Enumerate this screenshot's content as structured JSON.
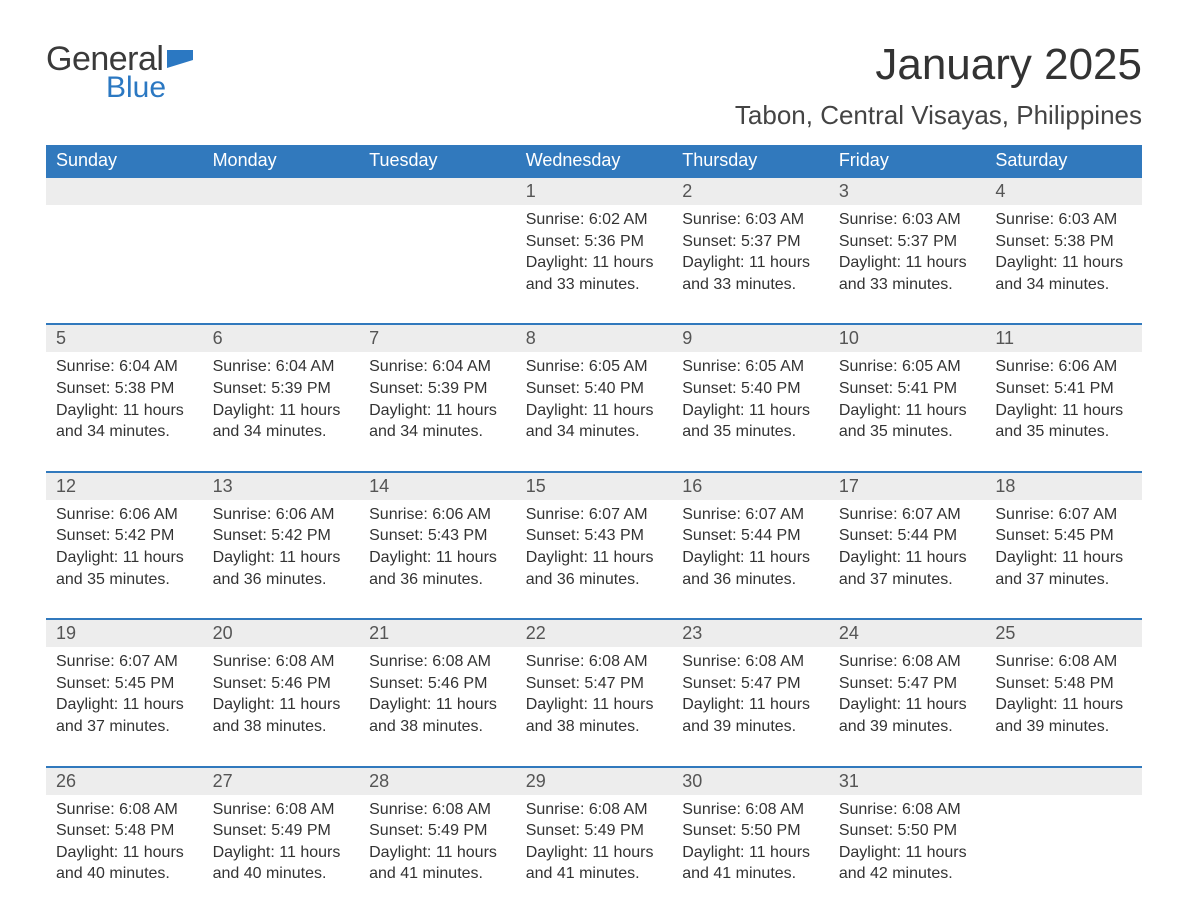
{
  "brand": {
    "general": "General",
    "blue": "Blue"
  },
  "title": "January 2025",
  "location": "Tabon, Central Visayas, Philippines",
  "colors": {
    "header_bg": "#3179bd",
    "daynum_bg": "#ededed",
    "text": "#333333",
    "brand_blue": "#2b78c2"
  },
  "day_headers": [
    "Sunday",
    "Monday",
    "Tuesday",
    "Wednesday",
    "Thursday",
    "Friday",
    "Saturday"
  ],
  "weeks": [
    [
      null,
      null,
      null,
      {
        "num": "1",
        "sunrise": "Sunrise: 6:02 AM",
        "sunset": "Sunset: 5:36 PM",
        "dl1": "Daylight: 11 hours",
        "dl2": "and 33 minutes."
      },
      {
        "num": "2",
        "sunrise": "Sunrise: 6:03 AM",
        "sunset": "Sunset: 5:37 PM",
        "dl1": "Daylight: 11 hours",
        "dl2": "and 33 minutes."
      },
      {
        "num": "3",
        "sunrise": "Sunrise: 6:03 AM",
        "sunset": "Sunset: 5:37 PM",
        "dl1": "Daylight: 11 hours",
        "dl2": "and 33 minutes."
      },
      {
        "num": "4",
        "sunrise": "Sunrise: 6:03 AM",
        "sunset": "Sunset: 5:38 PM",
        "dl1": "Daylight: 11 hours",
        "dl2": "and 34 minutes."
      }
    ],
    [
      {
        "num": "5",
        "sunrise": "Sunrise: 6:04 AM",
        "sunset": "Sunset: 5:38 PM",
        "dl1": "Daylight: 11 hours",
        "dl2": "and 34 minutes."
      },
      {
        "num": "6",
        "sunrise": "Sunrise: 6:04 AM",
        "sunset": "Sunset: 5:39 PM",
        "dl1": "Daylight: 11 hours",
        "dl2": "and 34 minutes."
      },
      {
        "num": "7",
        "sunrise": "Sunrise: 6:04 AM",
        "sunset": "Sunset: 5:39 PM",
        "dl1": "Daylight: 11 hours",
        "dl2": "and 34 minutes."
      },
      {
        "num": "8",
        "sunrise": "Sunrise: 6:05 AM",
        "sunset": "Sunset: 5:40 PM",
        "dl1": "Daylight: 11 hours",
        "dl2": "and 34 minutes."
      },
      {
        "num": "9",
        "sunrise": "Sunrise: 6:05 AM",
        "sunset": "Sunset: 5:40 PM",
        "dl1": "Daylight: 11 hours",
        "dl2": "and 35 minutes."
      },
      {
        "num": "10",
        "sunrise": "Sunrise: 6:05 AM",
        "sunset": "Sunset: 5:41 PM",
        "dl1": "Daylight: 11 hours",
        "dl2": "and 35 minutes."
      },
      {
        "num": "11",
        "sunrise": "Sunrise: 6:06 AM",
        "sunset": "Sunset: 5:41 PM",
        "dl1": "Daylight: 11 hours",
        "dl2": "and 35 minutes."
      }
    ],
    [
      {
        "num": "12",
        "sunrise": "Sunrise: 6:06 AM",
        "sunset": "Sunset: 5:42 PM",
        "dl1": "Daylight: 11 hours",
        "dl2": "and 35 minutes."
      },
      {
        "num": "13",
        "sunrise": "Sunrise: 6:06 AM",
        "sunset": "Sunset: 5:42 PM",
        "dl1": "Daylight: 11 hours",
        "dl2": "and 36 minutes."
      },
      {
        "num": "14",
        "sunrise": "Sunrise: 6:06 AM",
        "sunset": "Sunset: 5:43 PM",
        "dl1": "Daylight: 11 hours",
        "dl2": "and 36 minutes."
      },
      {
        "num": "15",
        "sunrise": "Sunrise: 6:07 AM",
        "sunset": "Sunset: 5:43 PM",
        "dl1": "Daylight: 11 hours",
        "dl2": "and 36 minutes."
      },
      {
        "num": "16",
        "sunrise": "Sunrise: 6:07 AM",
        "sunset": "Sunset: 5:44 PM",
        "dl1": "Daylight: 11 hours",
        "dl2": "and 36 minutes."
      },
      {
        "num": "17",
        "sunrise": "Sunrise: 6:07 AM",
        "sunset": "Sunset: 5:44 PM",
        "dl1": "Daylight: 11 hours",
        "dl2": "and 37 minutes."
      },
      {
        "num": "18",
        "sunrise": "Sunrise: 6:07 AM",
        "sunset": "Sunset: 5:45 PM",
        "dl1": "Daylight: 11 hours",
        "dl2": "and 37 minutes."
      }
    ],
    [
      {
        "num": "19",
        "sunrise": "Sunrise: 6:07 AM",
        "sunset": "Sunset: 5:45 PM",
        "dl1": "Daylight: 11 hours",
        "dl2": "and 37 minutes."
      },
      {
        "num": "20",
        "sunrise": "Sunrise: 6:08 AM",
        "sunset": "Sunset: 5:46 PM",
        "dl1": "Daylight: 11 hours",
        "dl2": "and 38 minutes."
      },
      {
        "num": "21",
        "sunrise": "Sunrise: 6:08 AM",
        "sunset": "Sunset: 5:46 PM",
        "dl1": "Daylight: 11 hours",
        "dl2": "and 38 minutes."
      },
      {
        "num": "22",
        "sunrise": "Sunrise: 6:08 AM",
        "sunset": "Sunset: 5:47 PM",
        "dl1": "Daylight: 11 hours",
        "dl2": "and 38 minutes."
      },
      {
        "num": "23",
        "sunrise": "Sunrise: 6:08 AM",
        "sunset": "Sunset: 5:47 PM",
        "dl1": "Daylight: 11 hours",
        "dl2": "and 39 minutes."
      },
      {
        "num": "24",
        "sunrise": "Sunrise: 6:08 AM",
        "sunset": "Sunset: 5:47 PM",
        "dl1": "Daylight: 11 hours",
        "dl2": "and 39 minutes."
      },
      {
        "num": "25",
        "sunrise": "Sunrise: 6:08 AM",
        "sunset": "Sunset: 5:48 PM",
        "dl1": "Daylight: 11 hours",
        "dl2": "and 39 minutes."
      }
    ],
    [
      {
        "num": "26",
        "sunrise": "Sunrise: 6:08 AM",
        "sunset": "Sunset: 5:48 PM",
        "dl1": "Daylight: 11 hours",
        "dl2": "and 40 minutes."
      },
      {
        "num": "27",
        "sunrise": "Sunrise: 6:08 AM",
        "sunset": "Sunset: 5:49 PM",
        "dl1": "Daylight: 11 hours",
        "dl2": "and 40 minutes."
      },
      {
        "num": "28",
        "sunrise": "Sunrise: 6:08 AM",
        "sunset": "Sunset: 5:49 PM",
        "dl1": "Daylight: 11 hours",
        "dl2": "and 41 minutes."
      },
      {
        "num": "29",
        "sunrise": "Sunrise: 6:08 AM",
        "sunset": "Sunset: 5:49 PM",
        "dl1": "Daylight: 11 hours",
        "dl2": "and 41 minutes."
      },
      {
        "num": "30",
        "sunrise": "Sunrise: 6:08 AM",
        "sunset": "Sunset: 5:50 PM",
        "dl1": "Daylight: 11 hours",
        "dl2": "and 41 minutes."
      },
      {
        "num": "31",
        "sunrise": "Sunrise: 6:08 AM",
        "sunset": "Sunset: 5:50 PM",
        "dl1": "Daylight: 11 hours",
        "dl2": "and 42 minutes."
      },
      null
    ]
  ]
}
